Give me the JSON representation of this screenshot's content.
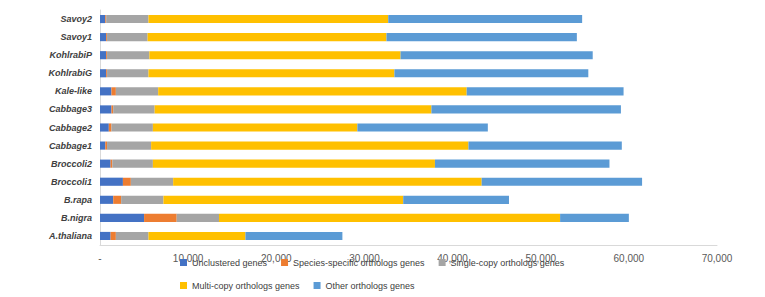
{
  "chart_data": {
    "type": "bar",
    "orientation": "horizontal",
    "stacked": true,
    "grid": false,
    "legend": "bottom",
    "categories": [
      "A.thaliana",
      "B.nigra",
      "B.rapa",
      "Broccoli1",
      "Broccoli2",
      "Cabbage1",
      "Cabbage2",
      "Cabbage3",
      "Kale-like",
      "KohlrabiG",
      "KohlrabiP",
      "Savoy1",
      "Savoy2"
    ],
    "xlim": [
      0,
      70000
    ],
    "xticks": [
      {
        "value": 0,
        "label": "-"
      },
      {
        "value": 10000,
        "label": "10,000"
      },
      {
        "value": 20000,
        "label": "20,000"
      },
      {
        "value": 30000,
        "label": "30,000"
      },
      {
        "value": 40000,
        "label": "40,000"
      },
      {
        "value": 50000,
        "label": "50,000"
      },
      {
        "value": 60000,
        "label": "60,000"
      },
      {
        "value": 70000,
        "label": "70,000"
      }
    ],
    "series": [
      {
        "name": "Unclustered genes",
        "color": "#4472c4",
        "values": [
          1200,
          5000,
          1500,
          2600,
          1200,
          600,
          1000,
          1300,
          1300,
          700,
          700,
          700,
          600
        ]
      },
      {
        "name": "Species-specific orthologs genes",
        "color": "#ed7d31",
        "values": [
          600,
          3700,
          900,
          900,
          200,
          200,
          300,
          200,
          500,
          100,
          100,
          100,
          100
        ]
      },
      {
        "name": "Single-copy orthologs genes",
        "color": "#a5a5a5",
        "values": [
          3700,
          4800,
          4800,
          4800,
          4600,
          5000,
          4700,
          4700,
          4800,
          4700,
          4800,
          4600,
          4800
        ]
      },
      {
        "name": "Multi-copy orthologs genes",
        "color": "#ffc000",
        "values": [
          11000,
          38700,
          27200,
          35000,
          32000,
          36000,
          23200,
          31400,
          35000,
          27900,
          28500,
          27100,
          27200
        ]
      },
      {
        "name": "Other orthologs genes",
        "color": "#5b9bd5",
        "values": [
          11000,
          7800,
          12000,
          18200,
          19800,
          17400,
          14800,
          21500,
          17800,
          22000,
          21800,
          21600,
          22000
        ]
      }
    ]
  }
}
